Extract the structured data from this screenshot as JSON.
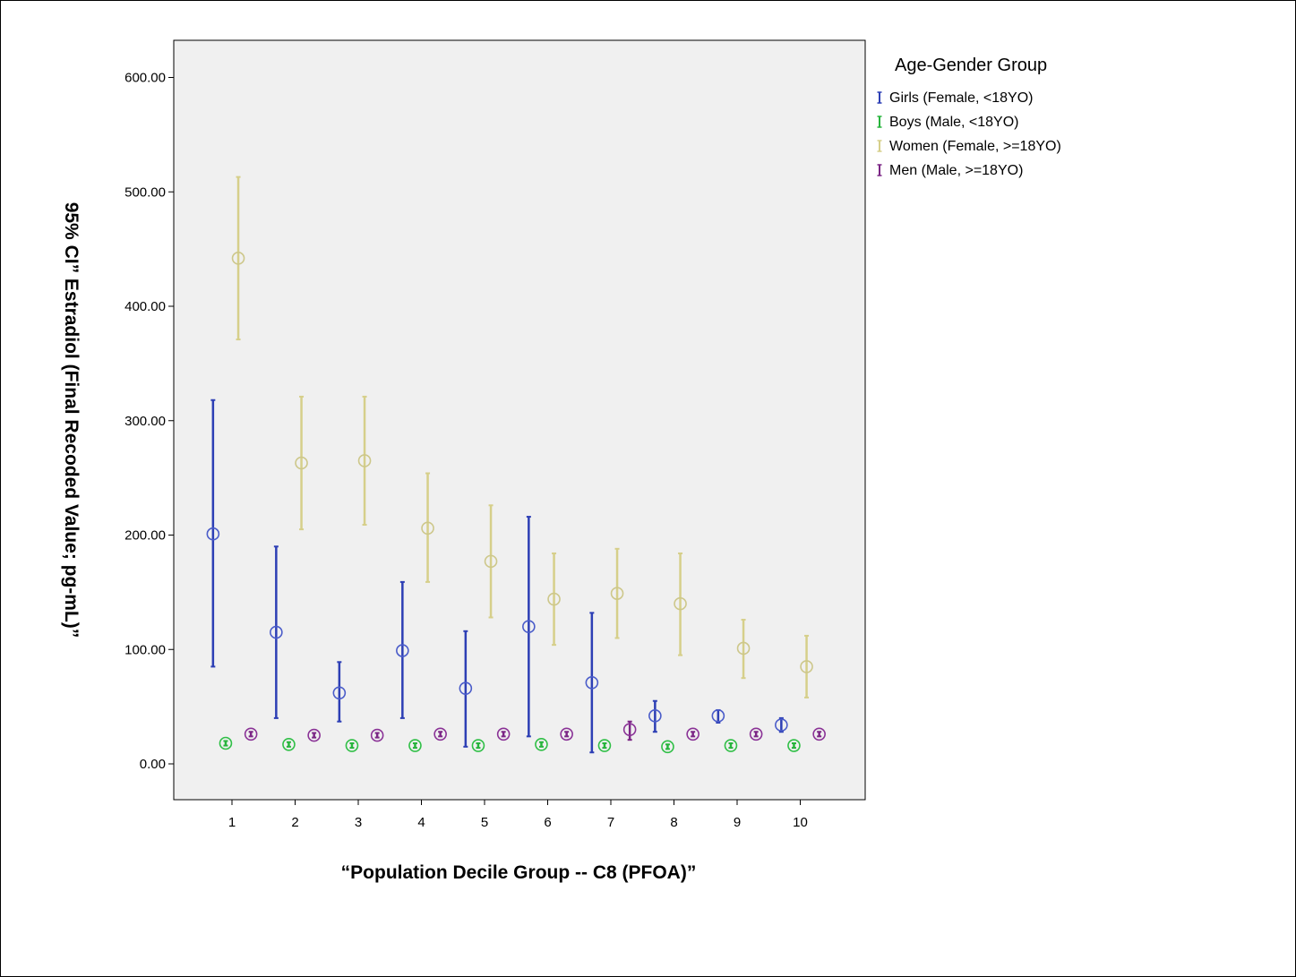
{
  "chart_data": {
    "type": "scatter",
    "subtype": "error-bar",
    "title": "",
    "xlabel": "“Population Decile Group --  C8 (PFOA)”",
    "ylabel": "95% CI” Estradiol (Final Recoded Value; pg-mL)”",
    "categories": [
      "1",
      "2",
      "3",
      "4",
      "5",
      "6",
      "7",
      "8",
      "9",
      "10"
    ],
    "ylim": [
      -30,
      640
    ],
    "yticks": [
      0,
      100,
      200,
      300,
      400,
      500,
      600
    ],
    "ytick_labels": [
      "0.00",
      "100.00",
      "200.00",
      "300.00",
      "400.00",
      "500.00",
      "600.00"
    ],
    "grid": false,
    "legend": {
      "title": "Age-Gender Group",
      "position": "right"
    },
    "series": [
      {
        "name": "Girls (Female, <18YO)",
        "color": "#2d3fb5",
        "marker_color": "#4a5cc9",
        "offset": -0.3,
        "mean": [
          201,
          115,
          62,
          99,
          66,
          120,
          71,
          42,
          42,
          34
        ],
        "lower": [
          85,
          40,
          37,
          40,
          15,
          24,
          10,
          28,
          36,
          28
        ],
        "upper": [
          318,
          190,
          89,
          159,
          116,
          216,
          132,
          55,
          47,
          40
        ]
      },
      {
        "name": "Boys (Male, <18YO)",
        "color": "#27b43c",
        "marker_color": "#2fbf46",
        "offset": -0.1,
        "mean": [
          18,
          17,
          16,
          16,
          16,
          17,
          16,
          15,
          16,
          16
        ],
        "lower": [
          16,
          15,
          14,
          14,
          14,
          15,
          14,
          13,
          14,
          14
        ],
        "upper": [
          20,
          19,
          18,
          18,
          18,
          19,
          18,
          17,
          18,
          18
        ]
      },
      {
        "name": "Women (Female, >=18YO)",
        "color": "#d6cf8a",
        "marker_color": "#cdc78a",
        "offset": 0.1,
        "mean": [
          442,
          263,
          265,
          206,
          177,
          144,
          149,
          140,
          101,
          85
        ],
        "lower": [
          371,
          205,
          209,
          159,
          128,
          104,
          110,
          95,
          75,
          58
        ],
        "upper": [
          513,
          321,
          321,
          254,
          226,
          184,
          188,
          184,
          126,
          112
        ]
      },
      {
        "name": "Men (Male, >=18YO)",
        "color": "#7b2685",
        "marker_color": "#8a3296",
        "offset": 0.3,
        "mean": [
          26,
          25,
          25,
          26,
          26,
          26,
          30,
          26,
          26,
          26
        ],
        "lower": [
          24,
          23,
          23,
          24,
          24,
          24,
          21,
          24,
          24,
          24
        ],
        "upper": [
          28,
          27,
          27,
          28,
          28,
          28,
          37,
          28,
          28,
          28
        ]
      }
    ]
  }
}
